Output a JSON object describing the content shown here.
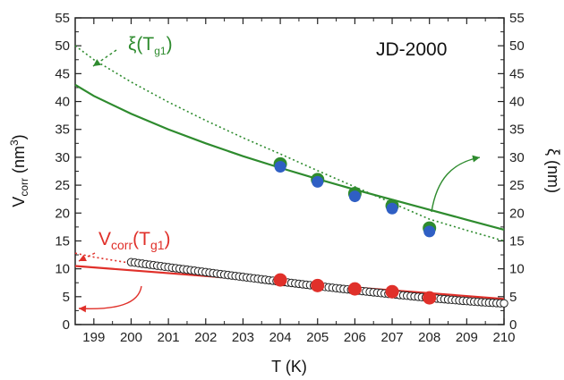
{
  "chart_data": {
    "type": "scatter",
    "title": "JD-2000",
    "xlabel": {
      "main": "T (K)"
    },
    "ylabel_left": {
      "main": "V",
      "sub": "corr",
      "tail1": " (nm",
      "sup": "3",
      "tail2": ")"
    },
    "ylabel_right": {
      "main": "ξ (nm)"
    },
    "xlim": [
      198.5,
      210
    ],
    "ylim": [
      0,
      55
    ],
    "xticks": [
      "199",
      "200",
      "201",
      "202",
      "203",
      "204",
      "205",
      "206",
      "207",
      "208",
      "209",
      "210"
    ],
    "yticks_left": [
      "0",
      "5",
      "10",
      "15",
      "20",
      "25",
      "30",
      "35",
      "40",
      "45",
      "50",
      "55"
    ],
    "yticks_right": [
      "0",
      "5",
      "10",
      "15",
      "20",
      "25",
      "30",
      "35",
      "40",
      "45",
      "50",
      "55"
    ],
    "annotations": {
      "xi": {
        "main": "ξ(T",
        "sub": "g1",
        "tail": ")"
      },
      "vcorr": {
        "main": "V",
        "sub1": "corr",
        "mid": "(T",
        "sub2": "g1",
        "tail": ")"
      }
    },
    "colors": {
      "green": "#2e8b2e",
      "blue": "#2f5fc4",
      "red": "#e0302a",
      "open": "#222222"
    },
    "series": [
      {
        "kind": "xi-points-green",
        "x": [
          204,
          205,
          206,
          207,
          208
        ],
        "y": [
          28.8,
          26.0,
          23.5,
          21.3,
          17.3
        ]
      },
      {
        "kind": "xi-points-blue",
        "x": [
          204,
          205,
          206,
          207,
          208
        ],
        "y": [
          28.3,
          25.6,
          23.0,
          20.8,
          16.7
        ]
      },
      {
        "kind": "vcorr-points-red",
        "x": [
          204,
          205,
          206,
          207,
          208
        ],
        "y": [
          8.0,
          7.0,
          6.4,
          5.9,
          4.8
        ]
      },
      {
        "kind": "vcorr-open-circles",
        "x_start": 200,
        "x_end": 210,
        "step": 0.1,
        "y_start": 11.2,
        "y_end": 3.8
      },
      {
        "kind": "xi-fit-solid",
        "x": [
          198.5,
          199,
          200,
          201,
          202,
          203,
          204,
          205,
          206,
          207,
          208,
          209,
          210
        ],
        "y": [
          43.0,
          41.0,
          37.8,
          35.0,
          32.5,
          30.2,
          28.1,
          26.1,
          24.2,
          22.4,
          20.6,
          18.8,
          17.0
        ]
      },
      {
        "kind": "xi-fit-dotted",
        "x": [
          198.5,
          199,
          200,
          201,
          202,
          203,
          204,
          205,
          206,
          207,
          208,
          209,
          210
        ],
        "y": [
          50.0,
          47.5,
          43.5,
          39.9,
          36.6,
          33.5,
          30.6,
          27.6,
          24.7,
          21.8,
          18.9,
          16.9,
          15.0
        ]
      },
      {
        "kind": "vcorr-fit-solid",
        "x": [
          198.5,
          210
        ],
        "y": [
          10.5,
          4.6
        ]
      },
      {
        "kind": "vcorr-fit-dotted",
        "x": [
          198.5,
          199,
          200,
          201,
          202,
          203,
          204,
          205,
          206,
          207,
          208,
          209,
          210
        ],
        "y": [
          12.8,
          12.1,
          11.0,
          10.0,
          9.2,
          8.5,
          7.8,
          7.1,
          6.5,
          5.9,
          5.3,
          4.7,
          4.2
        ]
      }
    ]
  }
}
